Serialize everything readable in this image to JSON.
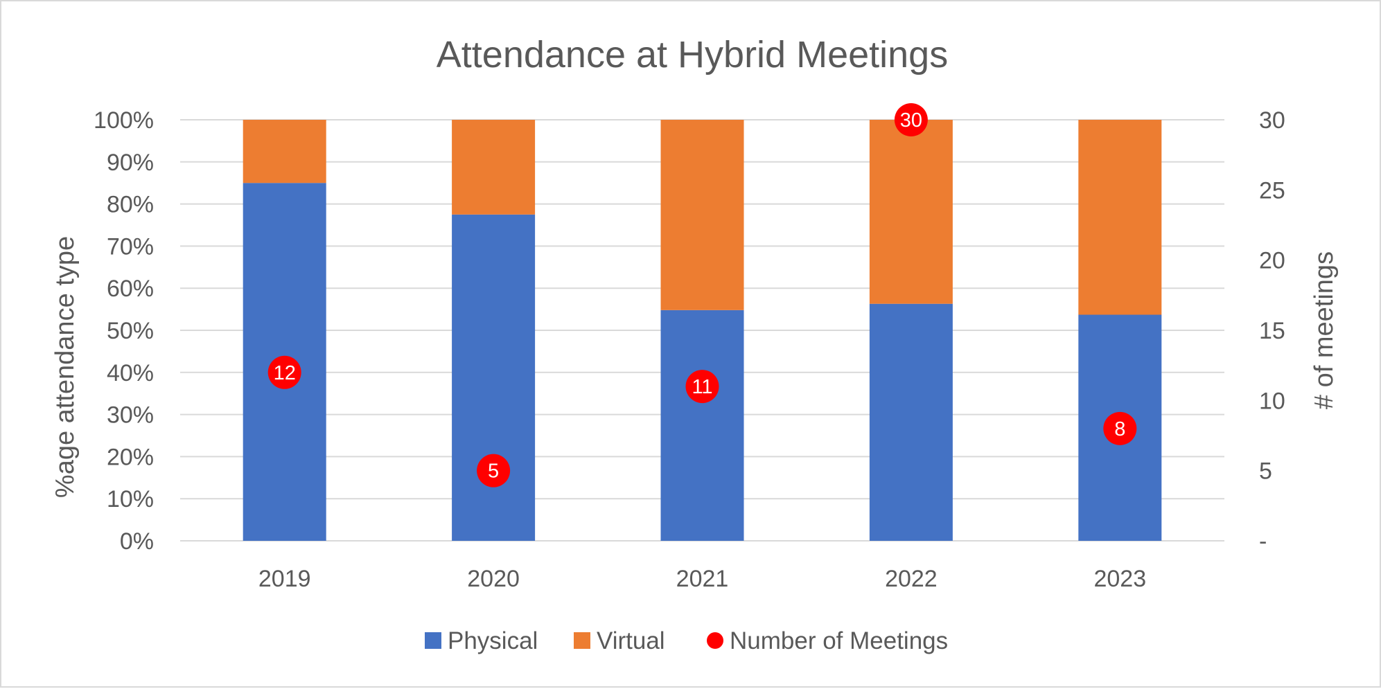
{
  "chart_data": {
    "type": "bar",
    "stacked": true,
    "title": "Attendance at Hybrid Meetings",
    "categories": [
      "2019",
      "2020",
      "2021",
      "2022",
      "2023"
    ],
    "series": [
      {
        "name": "Physical",
        "kind": "bar",
        "axis": "left",
        "color": "#4472C4",
        "values": [
          0.85,
          0.775,
          0.548,
          0.563,
          0.537
        ]
      },
      {
        "name": "Virtual",
        "kind": "bar",
        "axis": "left",
        "color": "#ED7D31",
        "values": [
          0.15,
          0.225,
          0.452,
          0.437,
          0.463
        ]
      },
      {
        "name": "Number of Meetings",
        "kind": "scatter",
        "axis": "right",
        "color": "#FF0000",
        "values": [
          12,
          5,
          11,
          30,
          8
        ],
        "labels": [
          "12",
          "5",
          "11",
          "30",
          "8"
        ]
      }
    ],
    "ylabel": "%age attendance type",
    "ylim": [
      0,
      1
    ],
    "y_ticks": [
      "0%",
      "10%",
      "20%",
      "30%",
      "40%",
      "50%",
      "60%",
      "70%",
      "80%",
      "90%",
      "100%"
    ],
    "y2label": "# of meetings",
    "y2lim": [
      0,
      30
    ],
    "y2_ticks": [
      "-",
      "5",
      "10",
      "15",
      "20",
      "25",
      "30"
    ],
    "grid": true,
    "legend_position": "bottom",
    "legend": [
      {
        "label": "Physical",
        "color": "#4472C4",
        "shape": "square"
      },
      {
        "label": "Virtual",
        "color": "#ED7D31",
        "shape": "square"
      },
      {
        "label": "Number of Meetings",
        "color": "#FF0000",
        "shape": "circle"
      }
    ]
  }
}
